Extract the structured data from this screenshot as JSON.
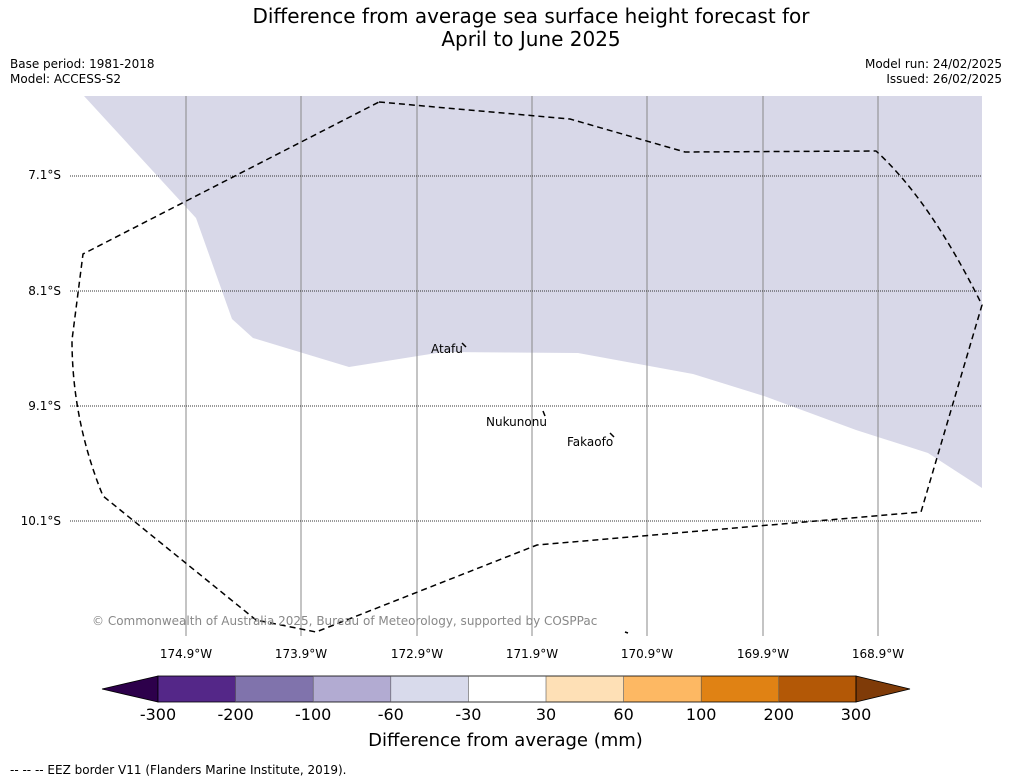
{
  "title_line1": "Difference from average sea surface height forecast for",
  "title_line2": "April to June 2025",
  "base_period": "Base period: 1981-2018",
  "model": "Model: ACCESS-S2",
  "model_run": "Model run: 24/02/2025",
  "issued": "Issued: 26/02/2025",
  "map": {
    "lat_labels": [
      "7.1°S",
      "8.1°S",
      "9.1°S",
      "10.1°S"
    ],
    "lon_labels": [
      "174.9°W",
      "173.9°W",
      "172.9°W",
      "171.9°W",
      "170.9°W",
      "169.9°W",
      "168.9°W"
    ],
    "places": [
      "Atafu",
      "Nukunonu",
      "Fakaofo"
    ],
    "copyright": "© Commonwealth of Australia 2025, Bureau of Meteorology, supported by COSPPac",
    "shaded_category": "-60 to -30",
    "shaded_color": "#d8d8e8"
  },
  "colorbar": {
    "ticks": [
      "-300",
      "-200",
      "-100",
      "-60",
      "-30",
      "30",
      "60",
      "100",
      "200",
      "300"
    ],
    "colors": [
      "#2d004b",
      "#542788",
      "#8073ac",
      "#b2abd2",
      "#d8daeb",
      "#ffffff",
      "#fee0b6",
      "#fdb863",
      "#e08214",
      "#b35806",
      "#7f3b08"
    ],
    "label": "Difference from average (mm)"
  },
  "legend_note": "--  --  -- EEZ border V11 (Flanders Marine Institute, 2019)."
}
